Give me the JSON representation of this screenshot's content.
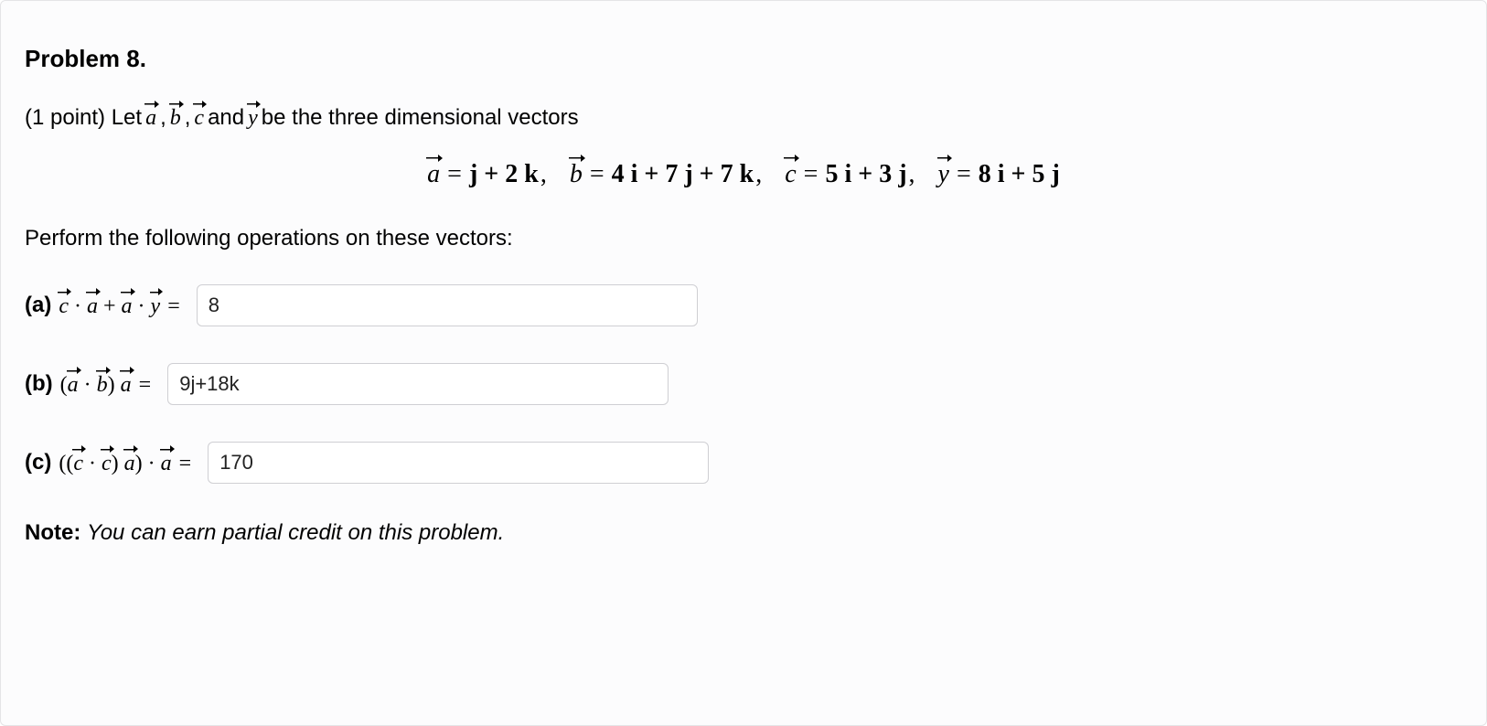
{
  "title": "Problem 8.",
  "points_prefix": "(1 point) Let ",
  "points_mid1": ", ",
  "points_mid2": ", ",
  "points_mid3": " and ",
  "points_suffix": " be the three dimensional vectors",
  "vectors": {
    "a_lhs": "a",
    "a_rhs": "j + 2 k",
    "b_lhs": "b",
    "b_rhs": "4 i + 7 j + 7 k",
    "c_lhs": "c",
    "c_rhs": "5 i + 3 j",
    "y_lhs": "y",
    "y_rhs": "8 i + 5 j"
  },
  "instruction": "Perform the following operations on these vectors:",
  "parts": {
    "a": {
      "label": "(a)",
      "value": "8",
      "input_width": 548
    },
    "b": {
      "label": "(b)",
      "value": "9j+18k",
      "input_width": 548
    },
    "c": {
      "label": "(c)",
      "value": "170",
      "input_width": 548
    }
  },
  "note_label": "Note",
  "note_text": "You can earn partial credit on this problem.",
  "styling": {
    "background": "#fcfcfd",
    "border_color": "#e4e4e6",
    "input_border": "#cfcfd3",
    "text_color": "#000000",
    "serif_font": "Times New Roman",
    "sans_font": "system-ui",
    "title_fontsize": 26,
    "body_fontsize": 24,
    "equation_fontsize": 28,
    "input_height": 46
  }
}
